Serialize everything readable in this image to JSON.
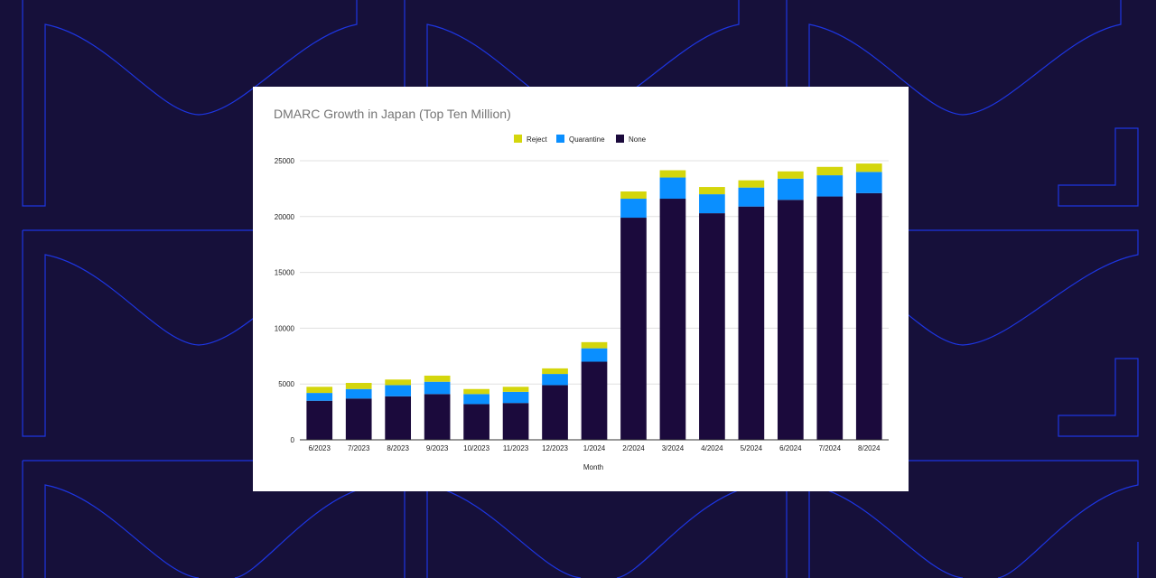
{
  "chart_data": {
    "type": "bar",
    "stacked": true,
    "title": "DMARC Growth in Japan (Top Ten Million)",
    "xlabel": "Month",
    "ylabel": "",
    "ylim": [
      0,
      25000
    ],
    "yticks": [
      0,
      5000,
      10000,
      15000,
      20000,
      25000
    ],
    "legend_position": "top",
    "grid": true,
    "categories": [
      "6/2023",
      "7/2023",
      "8/2023",
      "9/2023",
      "10/2023",
      "11/2023",
      "12/2023",
      "1/2024",
      "2/2024",
      "3/2024",
      "4/2024",
      "5/2024",
      "6/2024",
      "7/2024",
      "8/2024"
    ],
    "series": [
      {
        "name": "None",
        "color": "#1b0a3c",
        "values": [
          3500,
          3700,
          3900,
          4100,
          3200,
          3300,
          4900,
          7000,
          19900,
          21600,
          20300,
          20900,
          21500,
          21800,
          22100
        ]
      },
      {
        "name": "Quarantine",
        "color": "#0a8fff",
        "values": [
          700,
          850,
          1000,
          1100,
          900,
          1000,
          1000,
          1200,
          1700,
          1900,
          1700,
          1700,
          1900,
          1900,
          1900
        ]
      },
      {
        "name": "Reject",
        "color": "#d4d60c",
        "values": [
          550,
          550,
          500,
          550,
          450,
          450,
          500,
          550,
          650,
          650,
          650,
          650,
          650,
          750,
          750
        ]
      }
    ],
    "legend_order": [
      "Reject",
      "Quarantine",
      "None"
    ]
  }
}
